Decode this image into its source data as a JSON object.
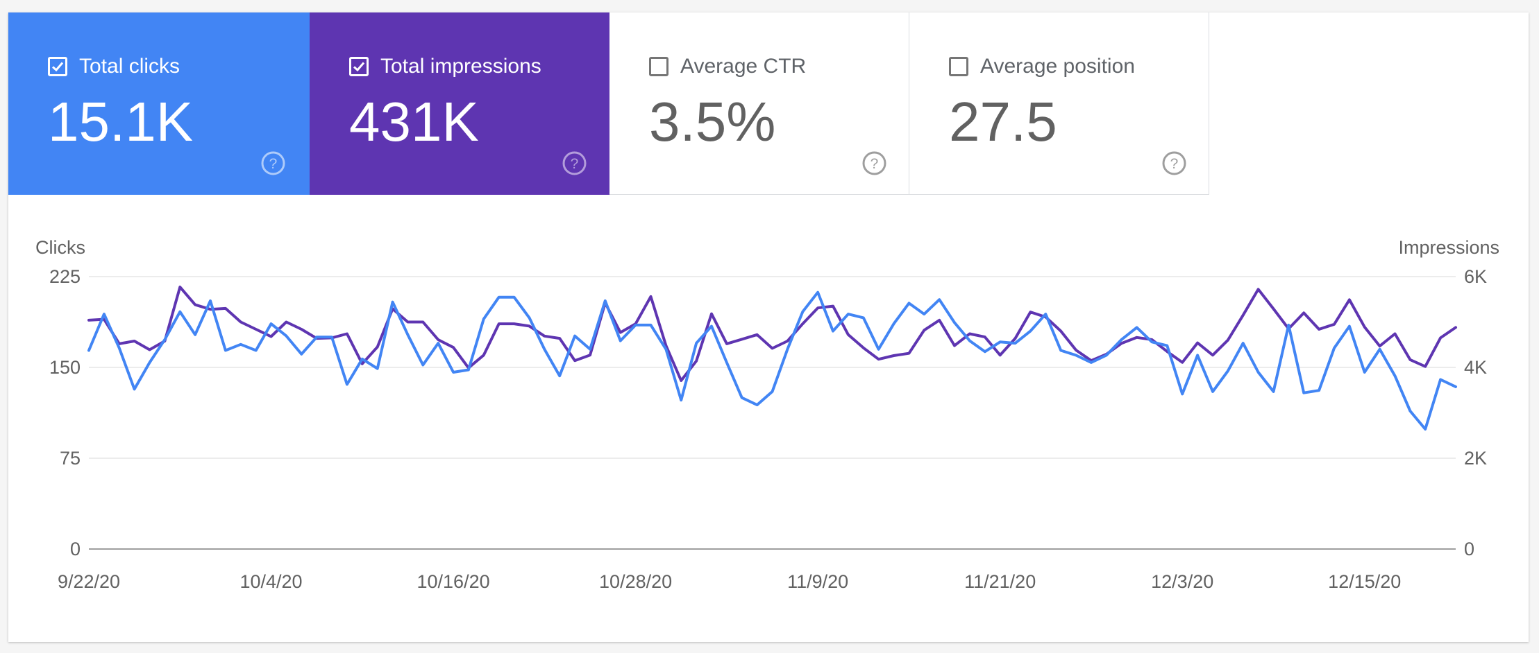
{
  "metrics": [
    {
      "label": "Total clicks",
      "value": "15.1K",
      "checked": true,
      "bg": "#4285f4",
      "icon": "help-icon"
    },
    {
      "label": "Total impressions",
      "value": "431K",
      "checked": true,
      "bg": "#5e35b1",
      "icon": "help-icon"
    },
    {
      "label": "Average CTR",
      "value": "3.5%",
      "checked": false,
      "bg": "#ffffff",
      "icon": "help-icon"
    },
    {
      "label": "Average position",
      "value": "27.5",
      "checked": false,
      "bg": "#ffffff",
      "icon": "help-icon"
    }
  ],
  "chart_data": {
    "type": "line",
    "ylabel_left": "Clicks",
    "ylabel_right": "Impressions",
    "y_left_ticks": [
      "0",
      "75",
      "150",
      "225"
    ],
    "y_left_range": [
      0,
      225
    ],
    "y_right_ticks": [
      "0",
      "2K",
      "4K",
      "6K"
    ],
    "y_right_range": [
      0,
      6000
    ],
    "x_ticks": [
      "9/22/20",
      "10/4/20",
      "10/16/20",
      "10/28/20",
      "11/9/20",
      "11/21/20",
      "12/3/20",
      "12/15/20"
    ],
    "x_range": [
      "9/22/20",
      "12/21/20"
    ],
    "grid": true,
    "colors": {
      "clicks": "#4285f4",
      "impressions": "#5e35b1"
    },
    "x": [
      "9/22/20",
      "9/23/20",
      "9/24/20",
      "9/25/20",
      "9/26/20",
      "9/27/20",
      "9/28/20",
      "9/29/20",
      "9/30/20",
      "10/1/20",
      "10/2/20",
      "10/3/20",
      "10/4/20",
      "10/5/20",
      "10/6/20",
      "10/7/20",
      "10/8/20",
      "10/9/20",
      "10/10/20",
      "10/11/20",
      "10/12/20",
      "10/13/20",
      "10/14/20",
      "10/15/20",
      "10/16/20",
      "10/17/20",
      "10/18/20",
      "10/19/20",
      "10/20/20",
      "10/21/20",
      "10/22/20",
      "10/23/20",
      "10/24/20",
      "10/25/20",
      "10/26/20",
      "10/27/20",
      "10/28/20",
      "10/29/20",
      "10/30/20",
      "10/31/20",
      "11/1/20",
      "11/2/20",
      "11/3/20",
      "11/4/20",
      "11/5/20",
      "11/6/20",
      "11/7/20",
      "11/8/20",
      "11/9/20",
      "11/10/20",
      "11/11/20",
      "11/12/20",
      "11/13/20",
      "11/14/20",
      "11/15/20",
      "11/16/20",
      "11/17/20",
      "11/18/20",
      "11/19/20",
      "11/20/20",
      "11/21/20",
      "11/22/20",
      "11/23/20",
      "11/24/20",
      "11/25/20",
      "11/26/20",
      "11/27/20",
      "11/28/20",
      "11/29/20",
      "11/30/20",
      "12/1/20",
      "12/2/20",
      "12/3/20",
      "12/4/20",
      "12/5/20",
      "12/6/20",
      "12/7/20",
      "12/8/20",
      "12/9/20",
      "12/10/20",
      "12/11/20",
      "12/12/20",
      "12/13/20",
      "12/14/20",
      "12/15/20",
      "12/16/20",
      "12/17/20",
      "12/18/20",
      "12/19/20",
      "12/20/20",
      "12/21/20"
    ],
    "series": [
      {
        "name": "Clicks",
        "axis": "left",
        "values": [
          164,
          194,
          166,
          132,
          154,
          173,
          196,
          177,
          205,
          164,
          169,
          164,
          186,
          176,
          161,
          175,
          175,
          136,
          157,
          149,
          204,
          177,
          152,
          170,
          146,
          148,
          190,
          208,
          208,
          191,
          165,
          143,
          176,
          165,
          205,
          172,
          185,
          185,
          165,
          123,
          170,
          184,
          154,
          125,
          119,
          130,
          165,
          196,
          212,
          180,
          194,
          191,
          165,
          186,
          203,
          194,
          206,
          187,
          172,
          163,
          171,
          170,
          180,
          194,
          164,
          160,
          154,
          160,
          173,
          183,
          171,
          168,
          128,
          160,
          130,
          147,
          170,
          146,
          130,
          185,
          129,
          131,
          166,
          184,
          146,
          165,
          143,
          114,
          99,
          140,
          134
        ]
      },
      {
        "name": "Impressions",
        "axis": "right",
        "values": [
          5040,
          5060,
          4520,
          4580,
          4390,
          4580,
          5770,
          5380,
          5280,
          5300,
          5000,
          4840,
          4680,
          5000,
          4840,
          4640,
          4650,
          4740,
          4080,
          4450,
          5290,
          5000,
          5000,
          4610,
          4440,
          3990,
          4270,
          4960,
          4960,
          4910,
          4690,
          4640,
          4150,
          4270,
          5420,
          4770,
          4960,
          5560,
          4480,
          3710,
          4140,
          5180,
          4520,
          4620,
          4720,
          4420,
          4580,
          4960,
          5310,
          5350,
          4720,
          4430,
          4180,
          4260,
          4310,
          4820,
          5040,
          4480,
          4740,
          4670,
          4270,
          4640,
          5220,
          5110,
          4800,
          4380,
          4150,
          4290,
          4530,
          4660,
          4610,
          4350,
          4110,
          4540,
          4270,
          4600,
          5150,
          5720,
          5290,
          4850,
          5200,
          4840,
          4950,
          5490,
          4890,
          4470,
          4740,
          4170,
          4020,
          4650,
          4880
        ]
      }
    ]
  }
}
